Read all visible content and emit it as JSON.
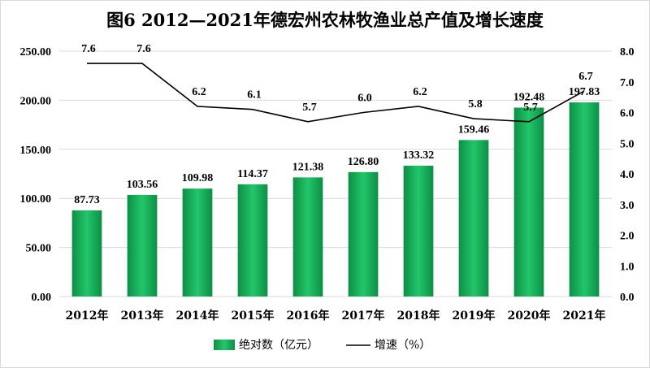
{
  "chart_data": {
    "type": "bar",
    "title": "图6  2012—2021年德宏州农林牧渔业总产值及增长速度",
    "categories": [
      "2012年",
      "2013年",
      "2014年",
      "2015年",
      "2016年",
      "2017年",
      "2018年",
      "2019年",
      "2020年",
      "2021年"
    ],
    "series": [
      {
        "name": "绝对数（亿元）",
        "type": "bar",
        "axis": "left",
        "color": "#1bb85c",
        "values": [
          87.73,
          103.56,
          109.98,
          114.37,
          121.38,
          126.8,
          133.32,
          159.46,
          192.48,
          197.83
        ],
        "labels": [
          "87.73",
          "103.56",
          "109.98",
          "114.37",
          "121.38",
          "126.80",
          "133.32",
          "159.46",
          "192.48",
          "197.83"
        ]
      },
      {
        "name": "增速（%）",
        "type": "line",
        "axis": "right",
        "color": "#000000",
        "values": [
          7.6,
          7.6,
          6.2,
          6.1,
          5.7,
          6.0,
          6.2,
          5.8,
          5.7,
          6.7
        ],
        "labels": [
          "7.6",
          "7.6",
          "6.2",
          "6.1",
          "5.7",
          "6.0",
          "6.2",
          "5.8",
          "5.7",
          "6.7"
        ]
      }
    ],
    "y_left": {
      "min": 0,
      "max": 250,
      "step": 50,
      "ticks": [
        "0.00",
        "50.00",
        "100.00",
        "150.00",
        "200.00",
        "250.00"
      ]
    },
    "y_right": {
      "min": 0,
      "max": 8,
      "step": 1,
      "ticks": [
        "0.0",
        "1.0",
        "2.0",
        "3.0",
        "4.0",
        "5.0",
        "6.0",
        "7.0",
        "8.0"
      ]
    },
    "grid": true,
    "legend_position": "bottom"
  }
}
